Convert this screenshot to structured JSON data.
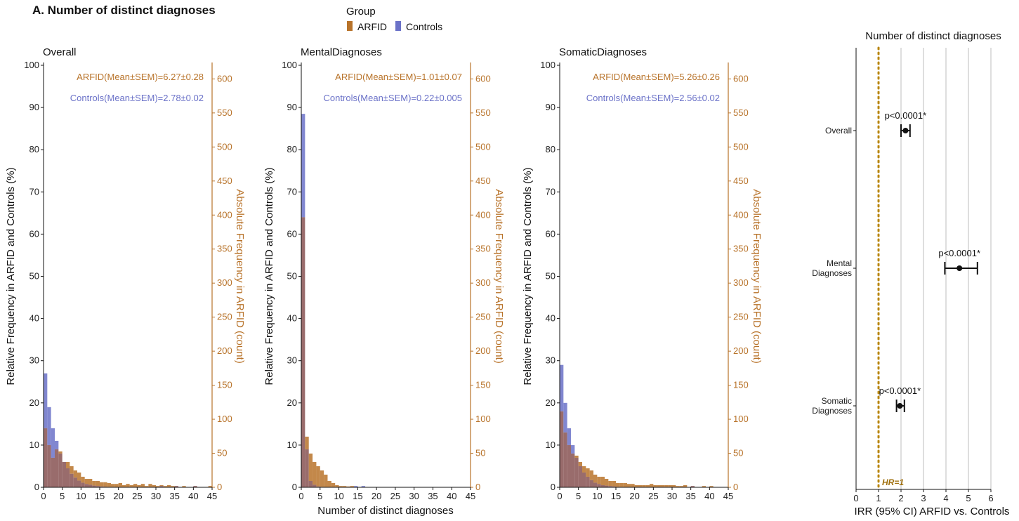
{
  "figure": {
    "panel_title": "A. Number of distinct diagnoses",
    "shared_xlabel": "Number of distinct diagnoses",
    "legend": {
      "title": "Group",
      "items": [
        {
          "label": "ARFID",
          "color": "#b8732a"
        },
        {
          "label": "Controls",
          "color": "#6b72c8"
        }
      ]
    },
    "colors": {
      "arfid": "#b8732a",
      "controls": "#6b72c8",
      "overlap": "#8e5c5c",
      "refline": "#b8860b"
    }
  },
  "chart_data": [
    {
      "type": "bar",
      "title": "Overall",
      "xlim": [
        0,
        45
      ],
      "xticks": [
        0,
        5,
        10,
        15,
        20,
        25,
        30,
        35,
        40,
        45
      ],
      "ylabel": "Relative Frequency in ARFID and Controls (%)",
      "ylim": [
        0,
        100
      ],
      "yticks": [
        0,
        10,
        20,
        30,
        40,
        50,
        60,
        70,
        80,
        90,
        100
      ],
      "y2label": "Absolute Frequency in ARFID (count)",
      "y2lim": [
        0,
        620
      ],
      "y2ticks": [
        0,
        50,
        100,
        150,
        200,
        250,
        300,
        350,
        400,
        450,
        500,
        550,
        600
      ],
      "annotations": [
        "ARFID(Mean±SEM)=6.27±0.28",
        "Controls(Mean±SEM)=2.78±0.02"
      ],
      "series": [
        {
          "name": "ARFID",
          "x": [
            0,
            1,
            2,
            3,
            4,
            5,
            6,
            7,
            8,
            9,
            10,
            11,
            12,
            13,
            14,
            15,
            16,
            17,
            18,
            19,
            20,
            21,
            22,
            23,
            24,
            25,
            26,
            27,
            28,
            29,
            30,
            31,
            32,
            33,
            34,
            35,
            36,
            37,
            38,
            39,
            40,
            41,
            42,
            43,
            44
          ],
          "values": [
            14,
            10,
            7,
            9,
            8.5,
            6,
            6,
            5,
            4,
            3.5,
            2.5,
            2,
            2,
            1.5,
            1.5,
            1.2,
            1.2,
            1,
            0.8,
            0.8,
            1,
            0.5,
            0.8,
            0.5,
            0.8,
            0.5,
            0.8,
            0.3,
            0.8,
            0.5,
            0.3,
            0.5,
            0.3,
            0.5,
            0.3,
            0.3,
            0,
            0.3,
            0,
            0,
            0.3,
            0,
            0,
            0,
            0.3
          ]
        },
        {
          "name": "Controls",
          "x": [
            0,
            1,
            2,
            3,
            4,
            5,
            6,
            7,
            8,
            9,
            10,
            11,
            12,
            13,
            14,
            15,
            16,
            17,
            18,
            19,
            20,
            21,
            22,
            23,
            24,
            25,
            26,
            27,
            28,
            29,
            30,
            31,
            32,
            33,
            34,
            35,
            36,
            37,
            38,
            39,
            40,
            41,
            42,
            43,
            44
          ],
          "values": [
            27,
            19,
            14,
            11,
            8,
            6,
            4.5,
            3.2,
            2.3,
            1.6,
            1.1,
            0.8,
            0.6,
            0.4,
            0.3,
            0.2,
            0.15,
            0.1,
            0.1,
            0.05,
            0.05,
            0,
            0,
            0,
            0,
            0,
            0,
            0,
            0,
            0,
            0,
            0.3,
            0,
            0,
            0,
            0.3,
            0,
            0,
            0,
            0,
            0.3,
            0,
            0,
            0,
            0
          ]
        }
      ]
    },
    {
      "type": "bar",
      "title": "MentalDiagnoses",
      "xlim": [
        0,
        45
      ],
      "xticks": [
        0,
        5,
        10,
        15,
        20,
        25,
        30,
        35,
        40,
        45
      ],
      "ylabel": "Relative Frequency in ARFID and Controls (%)",
      "ylim": [
        0,
        100
      ],
      "yticks": [
        0,
        10,
        20,
        30,
        40,
        50,
        60,
        70,
        80,
        90,
        100
      ],
      "y2label": "Absolute Frequency in ARFID (count)",
      "y2lim": [
        0,
        620
      ],
      "y2ticks": [
        0,
        50,
        100,
        150,
        200,
        250,
        300,
        350,
        400,
        450,
        500,
        550,
        600
      ],
      "annotations": [
        "ARFID(Mean±SEM)=1.01±0.07",
        "Controls(Mean±SEM)=0.22±0.005"
      ],
      "series": [
        {
          "name": "ARFID",
          "x": [
            0,
            1,
            2,
            3,
            4,
            5,
            6,
            7,
            8,
            9,
            10,
            11,
            12,
            13,
            14,
            15,
            16
          ],
          "values": [
            64,
            12,
            8,
            6,
            5,
            4,
            3,
            1.5,
            1,
            0.5,
            0.3,
            0.3,
            0.2,
            0.3,
            0,
            0,
            0
          ]
        },
        {
          "name": "Controls",
          "x": [
            0,
            1,
            2,
            3,
            4,
            5,
            6,
            7,
            8,
            9,
            10,
            11,
            12,
            13,
            14,
            15,
            16
          ],
          "values": [
            88.5,
            9,
            1.5,
            0.6,
            0.2,
            0.1,
            0,
            0,
            0,
            0,
            0,
            0,
            0,
            0,
            0.3,
            0,
            0.3
          ]
        }
      ]
    },
    {
      "type": "bar",
      "title": "SomaticDiagnoses",
      "xlim": [
        0,
        45
      ],
      "xticks": [
        0,
        5,
        10,
        15,
        20,
        25,
        30,
        35,
        40,
        45
      ],
      "ylabel": "Relative Frequency in ARFID and Controls (%)",
      "ylim": [
        0,
        100
      ],
      "yticks": [
        0,
        10,
        20,
        30,
        40,
        50,
        60,
        70,
        80,
        90,
        100
      ],
      "y2label": "Absolute Frequency in ARFID (count)",
      "y2lim": [
        0,
        620
      ],
      "y2ticks": [
        0,
        50,
        100,
        150,
        200,
        250,
        300,
        350,
        400,
        450,
        500,
        550,
        600
      ],
      "annotations": [
        "ARFID(Mean±SEM)=5.26±0.26",
        "Controls(Mean±SEM)=2.56±0.02"
      ],
      "series": [
        {
          "name": "ARFID",
          "x": [
            0,
            1,
            2,
            3,
            4,
            5,
            6,
            7,
            8,
            9,
            10,
            11,
            12,
            13,
            14,
            15,
            16,
            17,
            18,
            19,
            20,
            21,
            22,
            23,
            24,
            25,
            26,
            27,
            28,
            29,
            30,
            31,
            32,
            33,
            34,
            35,
            36,
            37,
            38,
            39,
            40
          ],
          "values": [
            18,
            13,
            10,
            8,
            7.5,
            6,
            5,
            4.5,
            4,
            3,
            2.5,
            2.5,
            2,
            1.5,
            1.5,
            1,
            1,
            1,
            0.8,
            0.8,
            0.5,
            0.5,
            0.5,
            0.5,
            0.8,
            0.5,
            0.5,
            0.5,
            0.5,
            0.5,
            0.5,
            0.3,
            0.3,
            0.5,
            0,
            0.3,
            0,
            0,
            0.3,
            0,
            0.3
          ]
        },
        {
          "name": "Controls",
          "x": [
            0,
            1,
            2,
            3,
            4,
            5,
            6,
            7,
            8,
            9,
            10,
            11,
            12,
            13,
            14,
            15,
            16,
            17,
            18,
            19,
            20,
            21,
            22,
            23,
            24,
            25,
            26,
            27,
            28,
            29,
            30,
            31,
            32,
            33,
            34,
            35,
            36,
            37,
            38,
            39,
            40
          ],
          "values": [
            29,
            20,
            14,
            10,
            7,
            5,
            3.5,
            2.5,
            1.7,
            1.1,
            0.8,
            0.5,
            0.4,
            0.3,
            0.2,
            0.1,
            0.1,
            0.05,
            0,
            0,
            0,
            0,
            0,
            0,
            0,
            0,
            0,
            0,
            0,
            0,
            0,
            0,
            0,
            0,
            0,
            0.3,
            0,
            0,
            0,
            0,
            0
          ]
        }
      ]
    },
    {
      "type": "forest",
      "title": "Number of distinct diagnoses",
      "xlabel": "IRR (95% CI) ARFID vs. Controls",
      "xlim": [
        0,
        6
      ],
      "xticks": [
        0,
        1,
        2,
        3,
        4,
        5,
        6
      ],
      "ref_value": 1,
      "ref_label": "HR=1",
      "rows": [
        {
          "label": [
            "Overall"
          ],
          "estimate": 2.2,
          "lower": 2.0,
          "upper": 2.4,
          "p": "p<0.0001*"
        },
        {
          "label": [
            "Mental",
            "Diagnoses"
          ],
          "estimate": 4.6,
          "lower": 3.95,
          "upper": 5.4,
          "p": "p<0.0001*"
        },
        {
          "label": [
            "Somatic",
            "Diagnoses"
          ],
          "estimate": 1.95,
          "lower": 1.8,
          "upper": 2.15,
          "p": "p<0.0001*"
        }
      ]
    }
  ]
}
